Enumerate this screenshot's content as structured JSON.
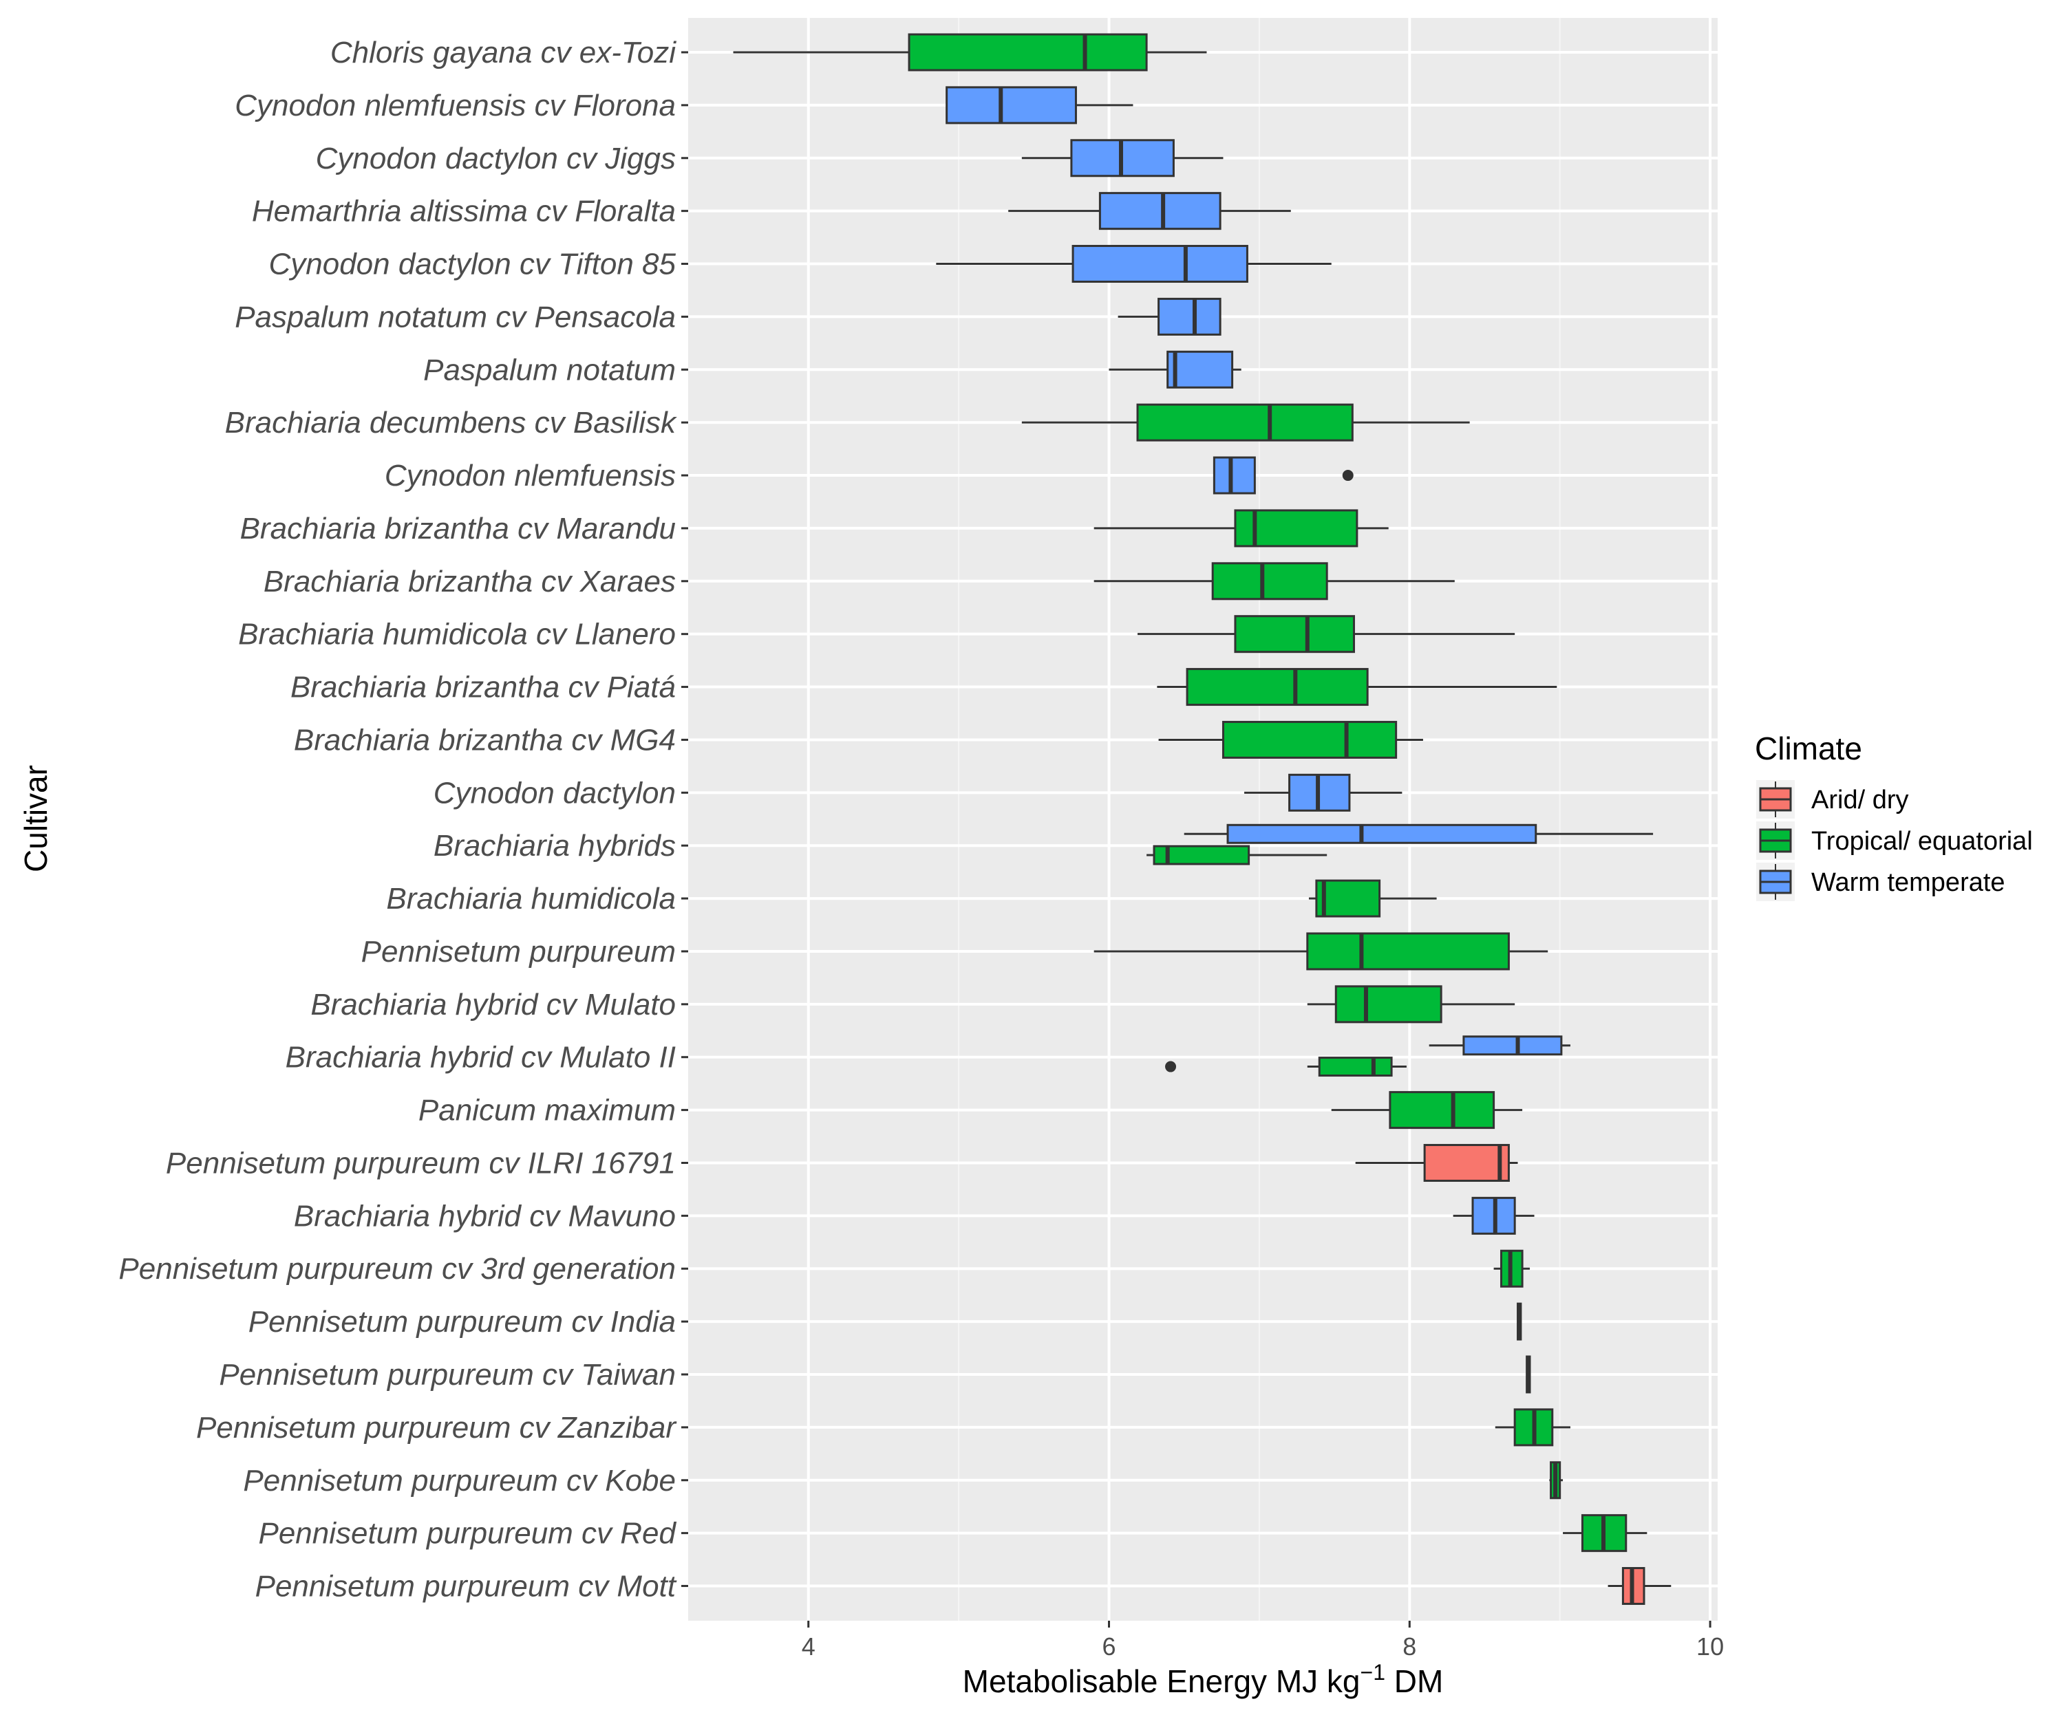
{
  "chart_data": {
    "type": "boxplot",
    "orientation": "horizontal",
    "xlabel_prefix": "Metabolisable Energy MJ kg",
    "xlabel_sup": "−1",
    "xlabel_suffix": " DM",
    "ylabel": "Cultivar",
    "xlim": [
      3.2,
      10.05
    ],
    "xticks": [
      4,
      6,
      8,
      10
    ],
    "legend": {
      "title": "Climate",
      "position": "right",
      "items": [
        {
          "name": "Arid/ dry",
          "color": "#F8766D"
        },
        {
          "name": "Tropical/ equatorial",
          "color": "#00BA38"
        },
        {
          "name": "Warm temperate",
          "color": "#619CFF"
        }
      ]
    },
    "categories": [
      "Chloris gayana cv ex-Tozi",
      "Cynodon nlemfuensis cv Florona",
      "Cynodon dactylon cv Jiggs",
      "Hemarthria altissima cv Floralta",
      "Cynodon dactylon cv Tifton 85",
      "Paspalum notatum cv Pensacola",
      "Paspalum notatum",
      "Brachiaria decumbens cv Basilisk",
      "Cynodon nlemfuensis",
      "Brachiaria brizantha cv Marandu",
      "Brachiaria brizantha cv Xaraes",
      "Brachiaria humidicola cv Llanero",
      "Brachiaria brizantha cv Piatá",
      "Brachiaria brizantha cv MG4",
      "Cynodon dactylon",
      "Brachiaria hybrids",
      "Brachiaria humidicola",
      "Pennisetum purpureum",
      "Brachiaria hybrid cv Mulato",
      "Brachiaria hybrid cv Mulato II",
      "Panicum maximum",
      "Pennisetum purpureum cv ILRI  16791",
      "Brachiaria hybrid cv Mavuno",
      "Pennisetum purpureum cv 3rd generation",
      "Pennisetum purpureum cv India",
      "Pennisetum purpureum cv Taiwan",
      "Pennisetum purpureum cv Zanzibar",
      "Pennisetum purpureum cv Kobe",
      "Pennisetum purpureum cv Red",
      "Pennisetum purpureum cv Mott"
    ],
    "boxes": [
      {
        "cat": 0,
        "climate": 1,
        "offset": 0,
        "min": 3.5,
        "q1": 4.67,
        "median": 5.84,
        "q3": 6.25,
        "max": 6.65
      },
      {
        "cat": 1,
        "climate": 2,
        "offset": 0,
        "min": 4.92,
        "q1": 4.92,
        "median": 5.28,
        "q3": 5.78,
        "max": 6.16
      },
      {
        "cat": 2,
        "climate": 2,
        "offset": 0,
        "min": 5.42,
        "q1": 5.75,
        "median": 6.08,
        "q3": 6.43,
        "max": 6.76
      },
      {
        "cat": 3,
        "climate": 2,
        "offset": 0,
        "min": 5.33,
        "q1": 5.94,
        "median": 6.36,
        "q3": 6.74,
        "max": 7.21
      },
      {
        "cat": 4,
        "climate": 2,
        "offset": 0,
        "min": 4.85,
        "q1": 5.76,
        "median": 6.51,
        "q3": 6.92,
        "max": 7.48
      },
      {
        "cat": 5,
        "climate": 2,
        "offset": 0,
        "min": 6.06,
        "q1": 6.33,
        "median": 6.57,
        "q3": 6.74,
        "max": 6.74
      },
      {
        "cat": 6,
        "climate": 2,
        "offset": 0,
        "min": 6.0,
        "q1": 6.39,
        "median": 6.44,
        "q3": 6.82,
        "max": 6.88
      },
      {
        "cat": 7,
        "climate": 1,
        "offset": 0,
        "min": 5.42,
        "q1": 6.19,
        "median": 7.07,
        "q3": 7.62,
        "max": 8.4
      },
      {
        "cat": 8,
        "climate": 2,
        "offset": 0,
        "min": 6.7,
        "q1": 6.7,
        "median": 6.81,
        "q3": 6.97,
        "max": 6.97,
        "outliers": [
          7.59
        ]
      },
      {
        "cat": 9,
        "climate": 1,
        "offset": 0,
        "min": 5.9,
        "q1": 6.84,
        "median": 6.97,
        "q3": 7.65,
        "max": 7.86
      },
      {
        "cat": 10,
        "climate": 1,
        "offset": 0,
        "min": 5.9,
        "q1": 6.69,
        "median": 7.02,
        "q3": 7.45,
        "max": 8.3
      },
      {
        "cat": 11,
        "climate": 1,
        "offset": 0,
        "min": 6.19,
        "q1": 6.84,
        "median": 7.32,
        "q3": 7.63,
        "max": 8.7
      },
      {
        "cat": 12,
        "climate": 1,
        "offset": 0,
        "min": 6.32,
        "q1": 6.52,
        "median": 7.24,
        "q3": 7.72,
        "max": 8.98
      },
      {
        "cat": 13,
        "climate": 1,
        "offset": 0,
        "min": 6.33,
        "q1": 6.76,
        "median": 7.58,
        "q3": 7.91,
        "max": 8.09
      },
      {
        "cat": 14,
        "climate": 2,
        "offset": 0,
        "min": 6.9,
        "q1": 7.2,
        "median": 7.39,
        "q3": 7.6,
        "max": 7.95
      },
      {
        "cat": 15,
        "climate": 2,
        "offset": -0.22,
        "min": 6.5,
        "q1": 6.79,
        "median": 7.68,
        "q3": 8.84,
        "max": 9.62
      },
      {
        "cat": 15,
        "climate": 1,
        "offset": 0.18,
        "min": 6.25,
        "q1": 6.3,
        "median": 6.39,
        "q3": 6.93,
        "max": 7.45
      },
      {
        "cat": 16,
        "climate": 1,
        "offset": 0,
        "min": 7.33,
        "q1": 7.38,
        "median": 7.43,
        "q3": 7.8,
        "max": 8.18
      },
      {
        "cat": 17,
        "climate": 1,
        "offset": 0,
        "min": 5.9,
        "q1": 7.32,
        "median": 7.68,
        "q3": 8.66,
        "max": 8.92
      },
      {
        "cat": 18,
        "climate": 1,
        "offset": 0,
        "min": 7.32,
        "q1": 7.51,
        "median": 7.71,
        "q3": 8.21,
        "max": 8.7
      },
      {
        "cat": 19,
        "climate": 2,
        "offset": -0.22,
        "min": 8.13,
        "q1": 8.36,
        "median": 8.72,
        "q3": 9.01,
        "max": 9.07
      },
      {
        "cat": 19,
        "climate": 1,
        "offset": 0.18,
        "min": 7.32,
        "q1": 7.4,
        "median": 7.76,
        "q3": 7.88,
        "max": 7.98,
        "outliers": [
          6.41
        ]
      },
      {
        "cat": 20,
        "climate": 1,
        "offset": 0,
        "min": 7.48,
        "q1": 7.87,
        "median": 8.29,
        "q3": 8.56,
        "max": 8.75
      },
      {
        "cat": 21,
        "climate": 0,
        "offset": 0,
        "min": 7.64,
        "q1": 8.1,
        "median": 8.6,
        "q3": 8.66,
        "max": 8.72
      },
      {
        "cat": 22,
        "climate": 2,
        "offset": 0,
        "min": 8.29,
        "q1": 8.42,
        "median": 8.57,
        "q3": 8.7,
        "max": 8.83
      },
      {
        "cat": 23,
        "climate": 1,
        "offset": 0,
        "min": 8.56,
        "q1": 8.61,
        "median": 8.67,
        "q3": 8.75,
        "max": 8.8
      },
      {
        "cat": 24,
        "climate": 1,
        "offset": 0,
        "min": 8.72,
        "q1": 8.72,
        "median": 8.73,
        "q3": 8.74,
        "max": 8.74
      },
      {
        "cat": 25,
        "climate": 1,
        "offset": 0,
        "min": 8.78,
        "q1": 8.78,
        "median": 8.79,
        "q3": 8.8,
        "max": 8.8
      },
      {
        "cat": 26,
        "climate": 1,
        "offset": 0,
        "min": 8.57,
        "q1": 8.7,
        "median": 8.83,
        "q3": 8.95,
        "max": 9.07
      },
      {
        "cat": 27,
        "climate": 1,
        "offset": 0,
        "min": 8.93,
        "q1": 8.94,
        "median": 8.97,
        "q3": 9.0,
        "max": 9.02
      },
      {
        "cat": 28,
        "climate": 1,
        "offset": 0,
        "min": 9.02,
        "q1": 9.15,
        "median": 9.29,
        "q3": 9.44,
        "max": 9.58
      },
      {
        "cat": 29,
        "climate": 0,
        "offset": 0,
        "min": 9.32,
        "q1": 9.42,
        "median": 9.48,
        "q3": 9.56,
        "max": 9.74
      }
    ]
  }
}
